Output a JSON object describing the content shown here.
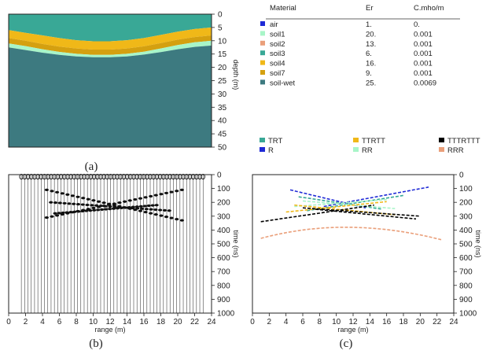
{
  "captions": {
    "a": "(a)",
    "b": "(b)",
    "c": "(c)"
  },
  "materials_table": {
    "headers": [
      "Material",
      "Er",
      "C.mho/m"
    ],
    "rows": [
      {
        "name": "air",
        "er": "1.",
        "c": "0.",
        "color": "#1f2ad6"
      },
      {
        "name": "soil1",
        "er": "20.",
        "c": "0.001",
        "color": "#a8f5c8"
      },
      {
        "name": "soil2",
        "er": "13.",
        "c": "0.001",
        "color": "#ea9f7a"
      },
      {
        "name": "soil3",
        "er": "6.",
        "c": "0.001",
        "color": "#39a896"
      },
      {
        "name": "soil4",
        "er": "16.",
        "c": "0.001",
        "color": "#f0b818"
      },
      {
        "name": "soil7",
        "er": "9.",
        "c": "0.001",
        "color": "#d4a010"
      },
      {
        "name": "soil-wet",
        "er": "25.",
        "c": "0.0069",
        "color": "#3d7a80"
      }
    ]
  },
  "chart_data": [
    {
      "id": "a",
      "type": "area",
      "ylabel": "depth (m)",
      "yticks": [
        "0",
        "5",
        "10",
        "15",
        "20",
        "25",
        "30",
        "35",
        "40",
        "45",
        "50"
      ],
      "ylim": [
        0,
        50
      ],
      "x": [
        0,
        2,
        4,
        6,
        8,
        10,
        12,
        14,
        16,
        18,
        20,
        22,
        24
      ],
      "layers": [
        {
          "material": "soil3",
          "top": [
            0,
            0,
            0,
            0,
            0,
            0,
            0,
            0,
            0,
            0,
            0,
            0,
            0
          ],
          "bottom": [
            6.0,
            7.0,
            8.0,
            9.0,
            9.8,
            10.2,
            10.2,
            9.8,
            9.0,
            7.8,
            6.6,
            5.6,
            5.0
          ]
        },
        {
          "material": "soil4",
          "top": [
            6.0,
            7.0,
            8.0,
            9.0,
            9.8,
            10.2,
            10.2,
            9.8,
            9.0,
            7.8,
            6.6,
            5.6,
            5.0
          ],
          "bottom": [
            9.0,
            10.0,
            11.2,
            12.2,
            12.9,
            13.3,
            13.3,
            12.9,
            12.1,
            10.9,
            9.6,
            8.6,
            8.0
          ]
        },
        {
          "material": "soil7",
          "top": [
            9.0,
            10.0,
            11.2,
            12.2,
            12.9,
            13.3,
            13.3,
            12.9,
            12.1,
            10.9,
            9.6,
            8.6,
            8.0
          ],
          "bottom": [
            11.0,
            12.0,
            13.2,
            14.2,
            14.9,
            15.3,
            15.3,
            14.9,
            14.1,
            12.9,
            11.6,
            10.6,
            10.0
          ]
        },
        {
          "material": "soil1",
          "top": [
            11.0,
            12.0,
            13.2,
            14.2,
            14.9,
            15.3,
            15.3,
            14.9,
            14.1,
            12.9,
            11.6,
            10.6,
            10.0
          ],
          "bottom": [
            12.5,
            13.5,
            14.5,
            15.3,
            15.9,
            16.2,
            16.2,
            15.9,
            15.2,
            14.3,
            13.2,
            12.3,
            11.8
          ]
        },
        {
          "material": "soil-wet",
          "top": [
            12.5,
            13.5,
            14.5,
            15.3,
            15.9,
            16.2,
            16.2,
            15.9,
            15.2,
            14.3,
            13.2,
            12.3,
            11.8
          ],
          "bottom": [
            50,
            50,
            50,
            50,
            50,
            50,
            50,
            50,
            50,
            50,
            50,
            50,
            50
          ]
        }
      ]
    },
    {
      "id": "b",
      "type": "line",
      "xlabel": "range (m)",
      "ylabel": "time (ns)",
      "xticks": [
        "0",
        "2",
        "4",
        "6",
        "8",
        "10",
        "12",
        "14",
        "16",
        "18",
        "20",
        "22",
        "24"
      ],
      "yticks": [
        "0",
        "100",
        "200",
        "300",
        "400",
        "500",
        "600",
        "700",
        "800",
        "900",
        "1000"
      ],
      "xlim": [
        0,
        24
      ],
      "ylim": [
        0,
        1000
      ],
      "traces": {
        "x_start": 1.5,
        "x_end": 23.0,
        "count": 56
      },
      "reflections": [
        {
          "x_range": [
            4.5,
            20.5
          ],
          "t_at": [
            110,
            330
          ]
        },
        {
          "x_range": [
            4.5,
            20.5
          ],
          "t_at": [
            310,
            110
          ]
        },
        {
          "x_range": [
            5.0,
            19.0
          ],
          "t_at": [
            200,
            260
          ]
        },
        {
          "x_range": [
            5.5,
            17.5
          ],
          "t_at": [
            280,
            220
          ]
        }
      ]
    },
    {
      "id": "c",
      "type": "scatter",
      "xlabel": "range (m)",
      "ylabel": "time (ns)",
      "xticks": [
        "0",
        "2",
        "4",
        "6",
        "8",
        "10",
        "12",
        "14",
        "16",
        "18",
        "20",
        "22",
        "24"
      ],
      "yticks": [
        "0",
        "100",
        "200",
        "300",
        "400",
        "500",
        "600",
        "700",
        "800",
        "900",
        "1000"
      ],
      "xlim": [
        0,
        24
      ],
      "ylim": [
        0,
        1000
      ],
      "legend": [
        {
          "name": "TRT",
          "color": "#39a896"
        },
        {
          "name": "TTRTT",
          "color": "#f0b818"
        },
        {
          "name": "TTTRTTT",
          "color": "#000000"
        },
        {
          "name": "R",
          "color": "#1f2ad6"
        },
        {
          "name": "RR",
          "color": "#a8f5c8"
        },
        {
          "name": "RRR",
          "color": "#ea9f7a"
        }
      ],
      "series": [
        {
          "name": "R",
          "segments": [
            {
              "x": [
                4.5,
                13.5
              ],
              "t": [
                110,
                240
              ]
            },
            {
              "x": [
                8.5,
                21.0
              ],
              "t": [
                230,
                90
              ]
            }
          ]
        },
        {
          "name": "TRT",
          "segments": [
            {
              "x": [
                5.5,
                15.5
              ],
              "t": [
                160,
                250
              ]
            },
            {
              "x": [
                6.5,
                18.0
              ],
              "t": [
                260,
                150
              ]
            }
          ]
        },
        {
          "name": "RR",
          "segments": [
            {
              "x": [
                5.0,
                16.0
              ],
              "t": [
                230,
                180
              ]
            },
            {
              "x": [
                6.0,
                17.0
              ],
              "t": [
                190,
                245
              ]
            }
          ]
        },
        {
          "name": "TTRTT",
          "segments": [
            {
              "x": [
                4.0,
                16.0
              ],
              "t": [
                270,
                195
              ]
            },
            {
              "x": [
                5.0,
                17.0
              ],
              "t": [
                220,
                290
              ]
            }
          ]
        },
        {
          "name": "TTTRTTT",
          "segments": [
            {
              "x": [
                1.0,
                14.5
              ],
              "t": [
                340,
                220
              ]
            },
            {
              "x": [
                6.0,
                20.0
              ],
              "t": [
                240,
                300
              ]
            },
            {
              "x": [
                7.5,
                19.5
              ],
              "t": [
                250,
                320
              ]
            }
          ]
        },
        {
          "name": "RRR",
          "segments": [
            {
              "x": [
                1.0,
                22.5
              ],
              "t": [
                460,
                470
              ],
              "peak": 380,
              "peak_x": 11.0
            }
          ]
        }
      ]
    }
  ]
}
